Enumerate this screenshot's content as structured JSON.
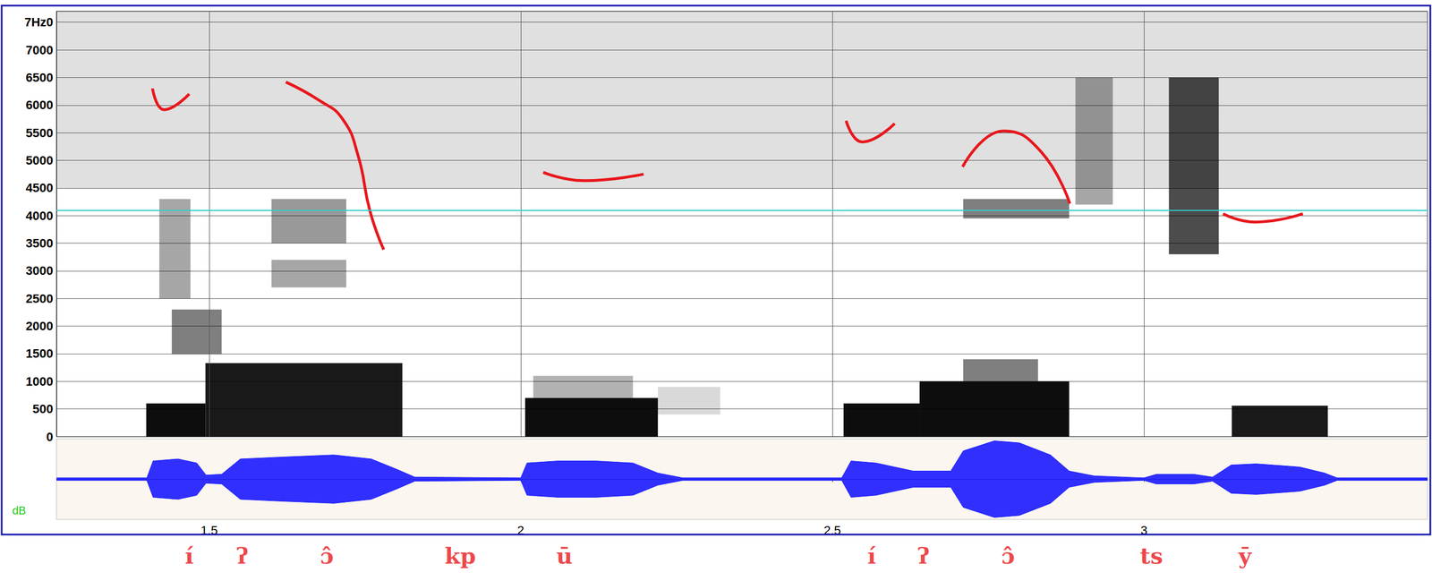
{
  "chart_data": {
    "type": "spectrogram",
    "xlim": [
      1.255,
      3.455
    ],
    "xticks": [
      1.5,
      2,
      2.5,
      3
    ],
    "ylim": [
      0,
      7700
    ],
    "yticks": [
      0,
      500,
      1000,
      1500,
      2000,
      2500,
      3000,
      3500,
      4000,
      4500,
      5000,
      5500,
      6000,
      6500,
      7000,
      {
        "value": 7500,
        "label": "7Hz0"
      }
    ],
    "grid": true,
    "bands": [
      {
        "x": [
          1.255,
          3.455
        ],
        "y": [
          4500,
          7700
        ],
        "intensity": 0.12
      },
      {
        "x": [
          1.399,
          1.494
        ],
        "y": [
          0,
          600
        ],
        "intensity": 0.95
      },
      {
        "x": [
          1.494,
          1.81
        ],
        "y": [
          0,
          1330
        ],
        "intensity": 0.9
      },
      {
        "x": [
          1.44,
          1.52
        ],
        "y": [
          1500,
          2300
        ],
        "intensity": 0.5
      },
      {
        "x": [
          1.42,
          1.47
        ],
        "y": [
          2500,
          4300
        ],
        "intensity": 0.35
      },
      {
        "x": [
          1.6,
          1.72
        ],
        "y": [
          3500,
          4300
        ],
        "intensity": 0.4
      },
      {
        "x": [
          1.6,
          1.72
        ],
        "y": [
          2700,
          3200
        ],
        "intensity": 0.35
      },
      {
        "x": [
          2.007,
          2.22
        ],
        "y": [
          0,
          700
        ],
        "intensity": 0.95
      },
      {
        "x": [
          2.02,
          2.18
        ],
        "y": [
          700,
          1100
        ],
        "intensity": 0.3
      },
      {
        "x": [
          2.22,
          2.32
        ],
        "y": [
          400,
          900
        ],
        "intensity": 0.15
      },
      {
        "x": [
          2.518,
          2.64
        ],
        "y": [
          0,
          600
        ],
        "intensity": 0.95
      },
      {
        "x": [
          2.64,
          2.88
        ],
        "y": [
          0,
          1000
        ],
        "intensity": 0.95
      },
      {
        "x": [
          2.71,
          2.83
        ],
        "y": [
          1000,
          1400
        ],
        "intensity": 0.5
      },
      {
        "x": [
          2.71,
          2.88
        ],
        "y": [
          3950,
          4300
        ],
        "intensity": 0.5
      },
      {
        "x": [
          2.89,
          2.95
        ],
        "y": [
          4200,
          6500
        ],
        "intensity": 0.35
      },
      {
        "x": [
          3.04,
          3.12
        ],
        "y": [
          3300,
          6500
        ],
        "intensity": 0.7
      },
      {
        "x": [
          3.141,
          3.295
        ],
        "y": [
          0,
          560
        ],
        "intensity": 0.9
      }
    ],
    "series": [
      {
        "type": "line",
        "color": "#e8161b",
        "x": [
          1.409,
          1.428,
          1.468
        ],
        "values": [
          6300,
          5917,
          6200
        ]
      },
      {
        "type": "line",
        "color": "#e8161b",
        "x": [
          1.623,
          1.677,
          1.714,
          1.739,
          1.758,
          1.78
        ],
        "values": [
          6417,
          6083,
          5750,
          5083,
          4083,
          3383
        ]
      },
      {
        "type": "line",
        "color": "#e8161b",
        "x": [
          2.036,
          2.102,
          2.197
        ],
        "values": [
          4783,
          4633,
          4750
        ]
      },
      {
        "type": "line",
        "color": "#e8161b",
        "x": [
          2.522,
          2.548,
          2.6
        ],
        "values": [
          5717,
          5333,
          5667
        ]
      },
      {
        "type": "line",
        "color": "#e8161b",
        "x": [
          2.709,
          2.775,
          2.834,
          2.881
        ],
        "values": [
          4883,
          5533,
          5167,
          4217
        ]
      },
      {
        "type": "line",
        "color": "#e8161b",
        "x": [
          3.127,
          3.178,
          3.255
        ],
        "values": [
          4033,
          3883,
          4033
        ]
      }
    ],
    "hline": {
      "value": 4100,
      "color": "#33cccc"
    },
    "waveform": {
      "label": "dB",
      "color": "#1a1aff",
      "ylim": [
        -1,
        1
      ],
      "x": [
        1.255,
        1.4,
        1.41,
        1.45,
        1.48,
        1.495,
        1.52,
        1.55,
        1.62,
        1.7,
        1.76,
        1.8,
        1.83,
        2.0,
        2.01,
        2.06,
        2.12,
        2.18,
        2.22,
        2.26,
        2.515,
        2.53,
        2.57,
        2.6,
        2.63,
        2.69,
        2.71,
        2.76,
        2.8,
        2.85,
        2.88,
        2.92,
        3.0,
        3.02,
        3.08,
        3.11,
        3.14,
        3.18,
        3.25,
        3.29,
        3.31,
        3.455
      ],
      "amplitude": [
        0.03,
        0.03,
        0.45,
        0.5,
        0.4,
        0.1,
        0.12,
        0.5,
        0.55,
        0.6,
        0.5,
        0.25,
        0.05,
        0.03,
        0.4,
        0.45,
        0.45,
        0.4,
        0.15,
        0.03,
        0.03,
        0.45,
        0.4,
        0.3,
        0.2,
        0.2,
        0.7,
        0.95,
        0.9,
        0.6,
        0.2,
        0.08,
        0.03,
        0.12,
        0.12,
        0.05,
        0.35,
        0.38,
        0.3,
        0.15,
        0.03,
        0.03
      ]
    },
    "segments": {
      "color": "#e8161b",
      "labels": [
        "í",
        "ʔ",
        "ɔ̂",
        "kp",
        "ū",
        "í",
        "ʔ",
        "ɔ̂",
        "ts",
        "ȳ"
      ],
      "x": [
        1.468,
        1.553,
        1.689,
        1.903,
        2.07,
        2.563,
        2.646,
        2.782,
        3.012,
        3.162
      ]
    }
  }
}
